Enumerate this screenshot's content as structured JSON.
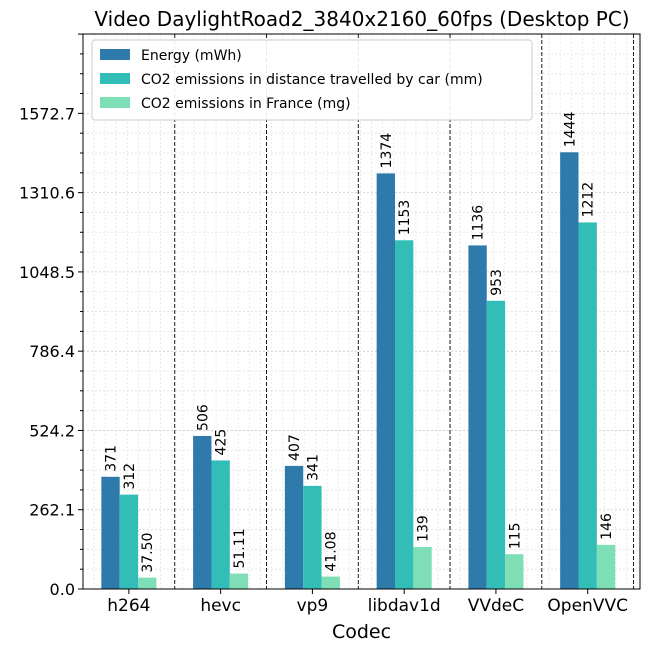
{
  "chart_data": {
    "type": "bar",
    "title": "Video DaylightRoad2_3840x2160_60fps (Desktop PC)",
    "xlabel": "Codec",
    "ylabel": "",
    "categories": [
      "h264",
      "hevc",
      "vp9",
      "libdav1d",
      "VVdeC",
      "OpenVVC"
    ],
    "series": [
      {
        "name": "Energy (mWh)",
        "color": "#2e7bab",
        "values": [
          371,
          506,
          407,
          1374,
          1136,
          1444
        ],
        "labels": [
          "371",
          "506",
          "407",
          "1374",
          "1136",
          "1444"
        ]
      },
      {
        "name": "CO2 emissions in distance travelled by car (mm)",
        "color": "#33bdb7",
        "values": [
          312,
          425,
          341,
          1153,
          953,
          1212
        ],
        "labels": [
          "312",
          "425",
          "341",
          "1153",
          "953",
          "1212"
        ]
      },
      {
        "name": "CO2 emissions in France (mg)",
        "color": "#7edeb6",
        "values": [
          37.5,
          51.11,
          41.08,
          139,
          115,
          146
        ],
        "labels": [
          "37.50",
          "51.11",
          "41.08",
          "139",
          "115",
          "146"
        ]
      }
    ],
    "y_ticks": [
      0,
      262.1,
      524.2,
      786.4,
      1048.5,
      1310.6,
      1572.7
    ],
    "y_tick_labels": [
      "0.0",
      "262.1",
      "524.2",
      "786.4",
      "1048.5",
      "1310.6",
      "1572.7"
    ],
    "ylim": [
      0,
      1835
    ],
    "grid": true,
    "legend_position": "top-left",
    "separators": "dashed vertical lines between codec groups"
  }
}
